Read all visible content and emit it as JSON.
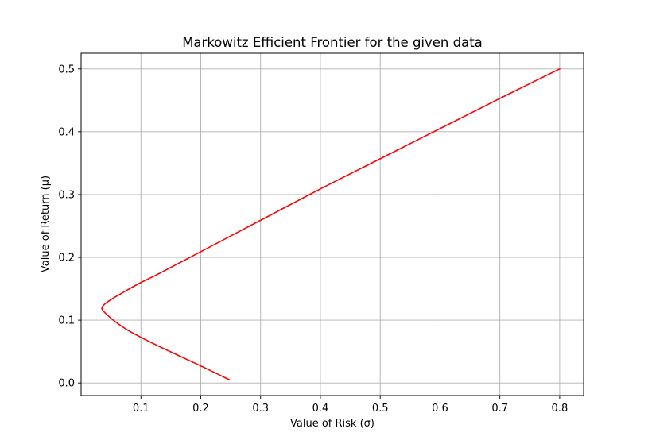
{
  "chart_data": {
    "type": "line",
    "title": "Markowitz Efficient Frontier for the given data",
    "xlabel": "Value of Risk (σ)",
    "ylabel": "Value of Return (μ)",
    "xlim": [
      0.0,
      0.84
    ],
    "ylim": [
      -0.02,
      0.525
    ],
    "xticks": [
      0.1,
      0.2,
      0.3,
      0.4,
      0.5,
      0.6,
      0.7,
      0.8
    ],
    "xtick_labels": [
      "0.1",
      "0.2",
      "0.3",
      "0.4",
      "0.5",
      "0.6",
      "0.7",
      "0.8"
    ],
    "yticks": [
      0.0,
      0.1,
      0.2,
      0.3,
      0.4,
      0.5
    ],
    "ytick_labels": [
      "0.0",
      "0.1",
      "0.2",
      "0.3",
      "0.4",
      "0.5"
    ],
    "grid": true,
    "series": [
      {
        "color": "#ff0000",
        "x": [
          0.248,
          0.205,
          0.16,
          0.118,
          0.08,
          0.058,
          0.043,
          0.036,
          0.035,
          0.04,
          0.052,
          0.07,
          0.096,
          0.13,
          0.2,
          0.3,
          0.4,
          0.5,
          0.6,
          0.7,
          0.8
        ],
        "y": [
          0.005,
          0.025,
          0.045,
          0.064,
          0.083,
          0.097,
          0.109,
          0.116,
          0.12,
          0.126,
          0.134,
          0.144,
          0.158,
          0.174,
          0.209,
          0.259,
          0.309,
          0.357,
          0.405,
          0.453,
          0.5
        ]
      }
    ]
  }
}
